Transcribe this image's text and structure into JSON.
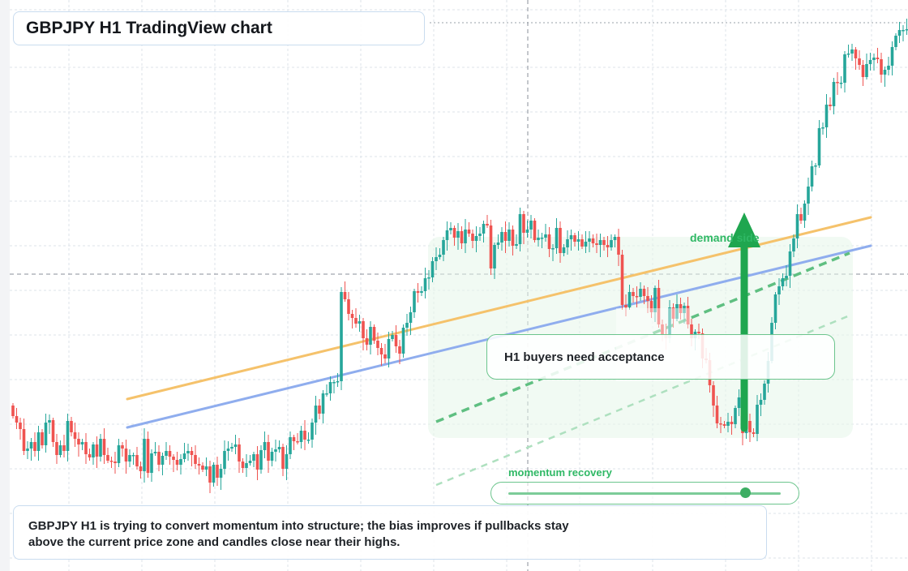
{
  "title": "GBPJPY H1 TradingView chart",
  "annotations": {
    "callout": "H1 buyers need acceptance",
    "demand_label": "demand side",
    "momentum_label": "momentum recovery",
    "momentum_level": 0.87
  },
  "description": {
    "line1": "GBPJPY H1 is trying to convert momentum into structure; the bias improves if pullbacks stay",
    "line2": "above the current price zone and candles close near their highs."
  },
  "colors": {
    "bull": "#26a69a",
    "bear": "#ef5350",
    "orange_line": "#f5c26b",
    "blue_line": "#8fadee",
    "accent_green": "#1fa64f",
    "grid": "#dde3ea",
    "crosshair": "#8a8f99"
  },
  "chart_data": {
    "type": "candlestick",
    "title": "",
    "price_axis_labels": "none visible",
    "closes": [
      513,
      521,
      529,
      556,
      553,
      545,
      556,
      533,
      549,
      521,
      518,
      545,
      561,
      549,
      556,
      519,
      533,
      541,
      548,
      545,
      560,
      564,
      548,
      563,
      541,
      561,
      568,
      569,
      571,
      549,
      553,
      569,
      561,
      561,
      575,
      581,
      541,
      583,
      559,
      557,
      573,
      562,
      556,
      563,
      567,
      573,
      566,
      559,
      556,
      561,
      572,
      574,
      579,
      575,
      595,
      573,
      589,
      578,
      556,
      553,
      551,
      548,
      569,
      577,
      571,
      568,
      560,
      579,
      555,
      545,
      568,
      557,
      554,
      551,
      578,
      560,
      539,
      544,
      545,
      531,
      542,
      542,
      521,
      500,
      510,
      485,
      485,
      471,
      471,
      470,
      360,
      369,
      387,
      392,
      399,
      396,
      417,
      425,
      403,
      420,
      429,
      437,
      442,
      418,
      413,
      427,
      436,
      404,
      398,
      385,
      359,
      361,
      359,
      343,
      342,
      322,
      317,
      314,
      296,
      284,
      281,
      293,
      285,
      300,
      283,
      288,
      297,
      291,
      288,
      276,
      278,
      331,
      302,
      299,
      286,
      297,
      283,
      303,
      301,
      264,
      287,
      283,
      272,
      296,
      293,
      293,
      289,
      307,
      306,
      281,
      312,
      305,
      295,
      290,
      298,
      295,
      304,
      298,
      294,
      300,
      302,
      296,
      302,
      305,
      296,
      292,
      314,
      376,
      379,
      360,
      365,
      366,
      356,
      365,
      371,
      385,
      355,
      400,
      412,
      417,
      379,
      393,
      375,
      386,
      377,
      400,
      417,
      409,
      411,
      442,
      444,
      475,
      500,
      522,
      523,
      525,
      520,
      523,
      503,
      490,
      534,
      519,
      533,
      535,
      499,
      493,
      473,
      445,
      398,
      363,
      353,
      343,
      340,
      310,
      294,
      264,
      272,
      251,
      230,
      205,
      204,
      158,
      157,
      129,
      131,
      101,
      102,
      102,
      67,
      66,
      61,
      72,
      80,
      95,
      79,
      74,
      71,
      73,
      92,
      86,
      81,
      58,
      44,
      37,
      37,
      36,
      52,
      46,
      38,
      70,
      86,
      66,
      84,
      95,
      123,
      128,
      135,
      131,
      124,
      140,
      130,
      128,
      153,
      156,
      160,
      145,
      149,
      147,
      94,
      84,
      63,
      40,
      28
    ],
    "note": "values are pixel-space closes from the screenshot; no price scale printed"
  }
}
